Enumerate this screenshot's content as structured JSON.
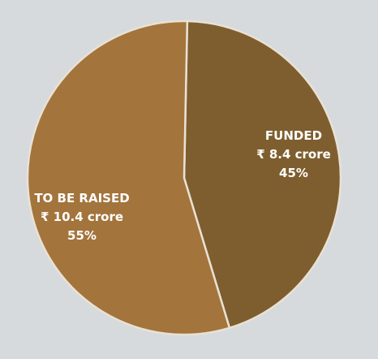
{
  "chart_data": {
    "type": "pie",
    "title": "",
    "slices": [
      {
        "name": "FUNDED",
        "amount": "₹ 8.4 crore",
        "percent_label": "45%",
        "value": 45,
        "color": "#7e5e2f"
      },
      {
        "name": "TO BE RAISED",
        "amount": "₹ 10.4 crore",
        "percent_label": "55%",
        "value": 55,
        "color": "#a3743c"
      }
    ],
    "background_color": "#d6dadd",
    "separator_color": "#e9e1d4",
    "legend": "none"
  }
}
